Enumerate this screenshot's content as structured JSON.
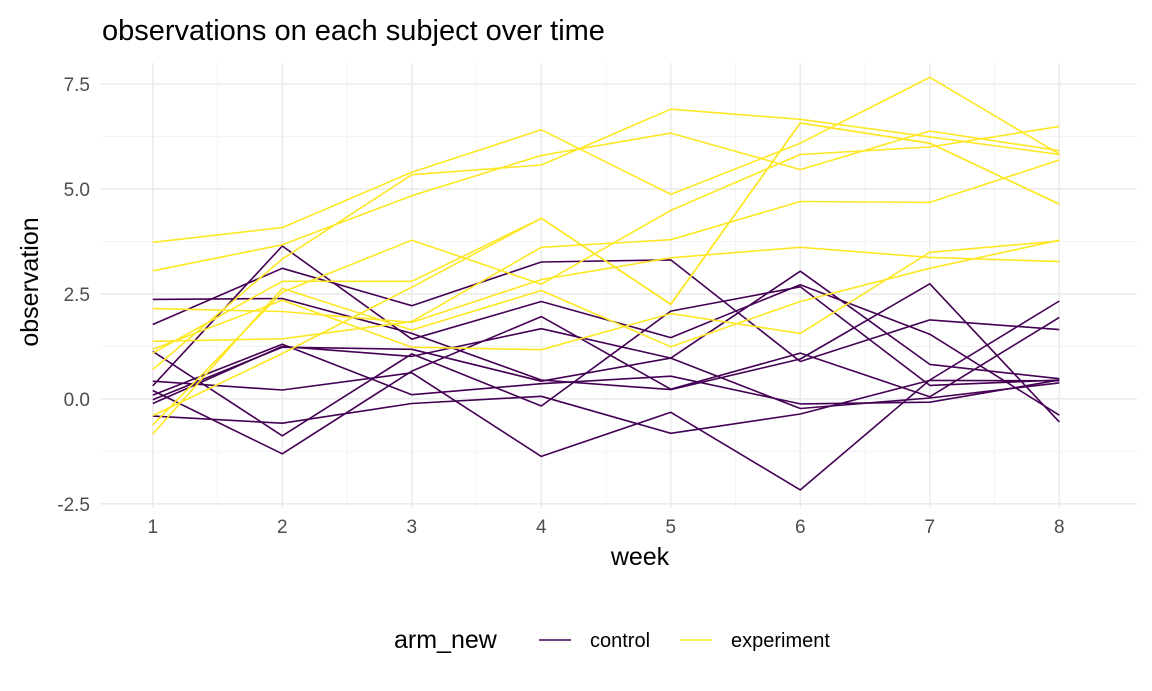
{
  "chart_data": {
    "type": "line",
    "title": "observations on each subject over time",
    "xlabel": "week",
    "ylabel": "observation",
    "x": [
      1,
      2,
      3,
      4,
      5,
      6,
      7,
      8
    ],
    "xlim": [
      0.6,
      8.6
    ],
    "ylim": [
      -2.6,
      8.0
    ],
    "x_ticks": [
      "1",
      "2",
      "3",
      "4",
      "5",
      "6",
      "7",
      "8"
    ],
    "y_ticks": [
      -2.5,
      0.0,
      2.5,
      5.0,
      7.5
    ],
    "y_tick_labels": [
      "-2.5",
      "0.0",
      "2.5",
      "5.0",
      "7.5"
    ],
    "grid": true,
    "legend": {
      "title": "arm_new",
      "position": "bottom",
      "entries": [
        {
          "label": "control",
          "color": "#440154"
        },
        {
          "label": "experiment",
          "color": "#fde725"
        }
      ]
    },
    "colors": {
      "control": "#440154",
      "experiment": "#fde725"
    },
    "series": [
      {
        "group": "control",
        "values": [
          0.2,
          -1.31,
          0.66,
          1.96,
          0.23,
          1.09,
          0.05,
          1.94
        ]
      },
      {
        "group": "control",
        "values": [
          1.13,
          -0.88,
          1.07,
          -0.17,
          2.09,
          2.67,
          0.32,
          0.45
        ]
      },
      {
        "group": "control",
        "values": [
          1.77,
          3.11,
          2.22,
          3.26,
          3.31,
          0.89,
          1.88,
          1.65
        ]
      },
      {
        "group": "control",
        "values": [
          0.09,
          1.3,
          0.1,
          0.36,
          0.54,
          -0.12,
          -0.08,
          0.45
        ]
      },
      {
        "group": "control",
        "values": [
          2.37,
          2.39,
          1.56,
          0.45,
          0.22,
          0.95,
          2.74,
          -0.55
        ]
      },
      {
        "group": "control",
        "values": [
          -0.02,
          1.23,
          1.18,
          0.42,
          0.97,
          3.04,
          0.82,
          0.48
        ]
      },
      {
        "group": "control",
        "values": [
          -0.11,
          1.25,
          1.01,
          1.67,
          0.97,
          -0.23,
          0.02,
          0.38
        ]
      },
      {
        "group": "control",
        "values": [
          -0.41,
          -0.58,
          -0.11,
          0.06,
          -0.82,
          -0.36,
          0.44,
          0.43
        ]
      },
      {
        "group": "control",
        "values": [
          0.31,
          3.64,
          1.42,
          2.32,
          1.46,
          2.72,
          1.54,
          -0.39
        ]
      },
      {
        "group": "control",
        "values": [
          0.42,
          0.21,
          0.62,
          -1.37,
          -0.32,
          -2.17,
          0.45,
          2.33
        ]
      },
      {
        "group": "experiment",
        "values": [
          3.05,
          3.67,
          4.84,
          5.8,
          6.33,
          5.46,
          6.38,
          5.91
        ]
      },
      {
        "group": "experiment",
        "values": [
          -0.84,
          2.63,
          1.64,
          2.58,
          1.24,
          2.32,
          3.11,
          3.78
        ]
      },
      {
        "group": "experiment",
        "values": [
          2.15,
          2.08,
          1.82,
          2.84,
          3.36,
          3.61,
          3.37,
          3.27
        ]
      },
      {
        "group": "experiment",
        "values": [
          -0.62,
          2.54,
          3.78,
          2.73,
          4.49,
          5.82,
          6.0,
          6.49
        ]
      },
      {
        "group": "experiment",
        "values": [
          0.7,
          3.33,
          5.34,
          5.57,
          6.9,
          6.66,
          6.24,
          5.82
        ]
      },
      {
        "group": "experiment",
        "values": [
          3.73,
          4.08,
          5.4,
          6.41,
          4.87,
          6.09,
          7.66,
          5.83
        ]
      },
      {
        "group": "experiment",
        "values": [
          1.18,
          2.35,
          1.23,
          1.17,
          2.03,
          1.56,
          3.49,
          3.76
        ]
      },
      {
        "group": "experiment",
        "values": [
          1.37,
          1.43,
          1.84,
          3.61,
          3.79,
          4.7,
          4.68,
          5.69
        ]
      },
      {
        "group": "experiment",
        "values": [
          -0.4,
          1.08,
          2.66,
          4.3,
          2.26,
          6.57,
          6.09,
          4.64
        ]
      },
      {
        "group": "experiment",
        "values": [
          1.09,
          2.8,
          2.8,
          4.3,
          2.25,
          6.57,
          6.09,
          4.64
        ]
      }
    ]
  }
}
